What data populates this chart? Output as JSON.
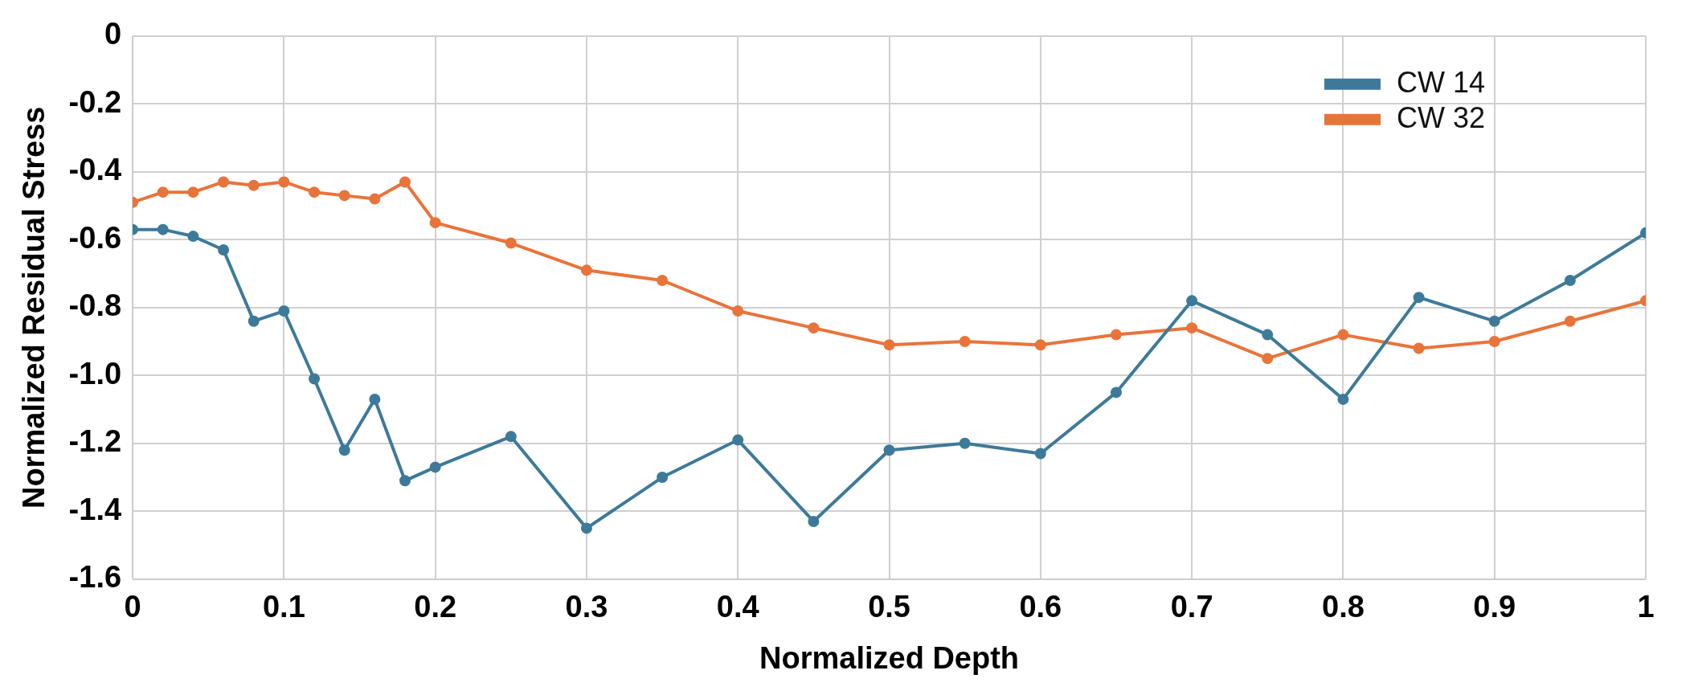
{
  "chart_data": {
    "type": "line",
    "xlabel": "Normalized Depth",
    "ylabel": "Normalized Residual Stress",
    "x": [
      0,
      0.02,
      0.04,
      0.06,
      0.08,
      0.1,
      0.12,
      0.14,
      0.16,
      0.18,
      0.2,
      0.25,
      0.3,
      0.35,
      0.4,
      0.45,
      0.5,
      0.55,
      0.6,
      0.65,
      0.7,
      0.75,
      0.8,
      0.85,
      0.9,
      0.95,
      1
    ],
    "series": [
      {
        "name": "CW 14",
        "color": "#3d7a9a",
        "values": [
          -0.57,
          -0.57,
          -0.59,
          -0.63,
          -0.84,
          -0.81,
          -1.01,
          -1.22,
          -1.07,
          -1.31,
          -1.27,
          -1.18,
          -1.45,
          -1.3,
          -1.19,
          -1.43,
          -1.22,
          -1.2,
          -1.23,
          -1.05,
          -0.78,
          -0.88,
          -1.07,
          -0.77,
          -0.84,
          -0.72,
          -0.58
        ]
      },
      {
        "name": "CW 32",
        "color": "#e8743b",
        "values": [
          -0.49,
          -0.46,
          -0.46,
          -0.43,
          -0.44,
          -0.43,
          -0.46,
          -0.47,
          -0.48,
          -0.43,
          -0.55,
          -0.61,
          -0.69,
          -0.72,
          -0.81,
          -0.86,
          -0.91,
          -0.9,
          -0.91,
          -0.88,
          -0.86,
          -0.95,
          -0.88,
          -0.92,
          -0.9,
          -0.84,
          -0.78
        ]
      }
    ],
    "xlim": [
      0,
      1
    ],
    "xticks": [
      0,
      0.1,
      0.2,
      0.3,
      0.4,
      0.5,
      0.6,
      0.7,
      0.8,
      0.9,
      1
    ],
    "ylim": [
      -1.6,
      0
    ],
    "yticks": [
      {
        "value": -1.6,
        "label": "-1.6"
      },
      {
        "value": -1.4,
        "label": "-1.4"
      },
      {
        "value": -1.2,
        "label": "-1.2"
      },
      {
        "value": -1,
        "label": "-1.0"
      },
      {
        "value": -0.8,
        "label": "-0.8"
      },
      {
        "value": -0.6,
        "label": "-0.6"
      },
      {
        "value": -0.4,
        "label": "-0.4"
      },
      {
        "value": -0.2,
        "label": "-0.2"
      },
      {
        "value": 0,
        "label": "0"
      }
    ],
    "grid": true,
    "legend": "top right",
    "marker": "circle",
    "line_style": "solid"
  }
}
